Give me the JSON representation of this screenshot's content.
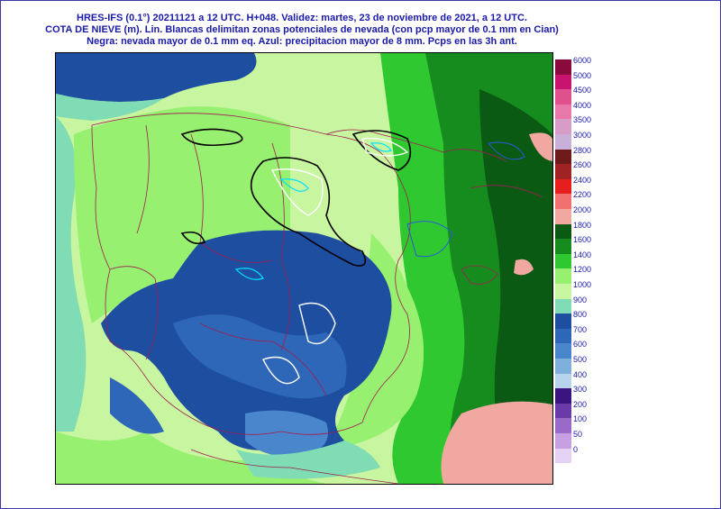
{
  "header": {
    "line1": "HRES-IFS (0.1°) 20211121 a 12 UTC.  H+048. Validez: martes, 23 de noviembre de 2021,  a  12 UTC.",
    "line2": "COTA DE NIEVE (m). Lin. Blancas delimitan zonas potenciales de nevada (con pcp mayor de 0.1 mm en Cian)",
    "line3": "Negra: nevada mayor de 0.1 mm eq. Azul: precipitacion mayor de 8 mm. Pcps en las 3h ant."
  },
  "legend": {
    "levels": [
      {
        "label": "6000",
        "color": "#8b0a3e"
      },
      {
        "label": "5000",
        "color": "#c8146e"
      },
      {
        "label": "4500",
        "color": "#e0508c"
      },
      {
        "label": "4000",
        "color": "#e878aa"
      },
      {
        "label": "3500",
        "color": "#d79cc8"
      },
      {
        "label": "3000",
        "color": "#c9b0d8"
      },
      {
        "label": "2800",
        "color": "#6e1a1a"
      },
      {
        "label": "2600",
        "color": "#a02222"
      },
      {
        "label": "2400",
        "color": "#e61e1e"
      },
      {
        "label": "2200",
        "color": "#f07070"
      },
      {
        "label": "2000",
        "color": "#f0a8a0"
      },
      {
        "label": "1800",
        "color": "#0a5a14"
      },
      {
        "label": "1600",
        "color": "#168c1e"
      },
      {
        "label": "1400",
        "color": "#30c830"
      },
      {
        "label": "1200",
        "color": "#98f070"
      },
      {
        "label": "1000",
        "color": "#c8f5a0"
      },
      {
        "label": "900",
        "color": "#7fdcb4"
      },
      {
        "label": "800",
        "color": "#1e4ea0"
      },
      {
        "label": "700",
        "color": "#2e66b8"
      },
      {
        "label": "600",
        "color": "#4a86cc"
      },
      {
        "label": "500",
        "color": "#7fb0dc"
      },
      {
        "label": "400",
        "color": "#b8d4ec"
      },
      {
        "label": "300",
        "color": "#3c1480"
      },
      {
        "label": "200",
        "color": "#6a3aa8"
      },
      {
        "label": "100",
        "color": "#9a6ac8"
      },
      {
        "label": "50",
        "color": "#c6a0e0"
      },
      {
        "label": "0",
        "color": "#e6d2f4"
      }
    ]
  }
}
